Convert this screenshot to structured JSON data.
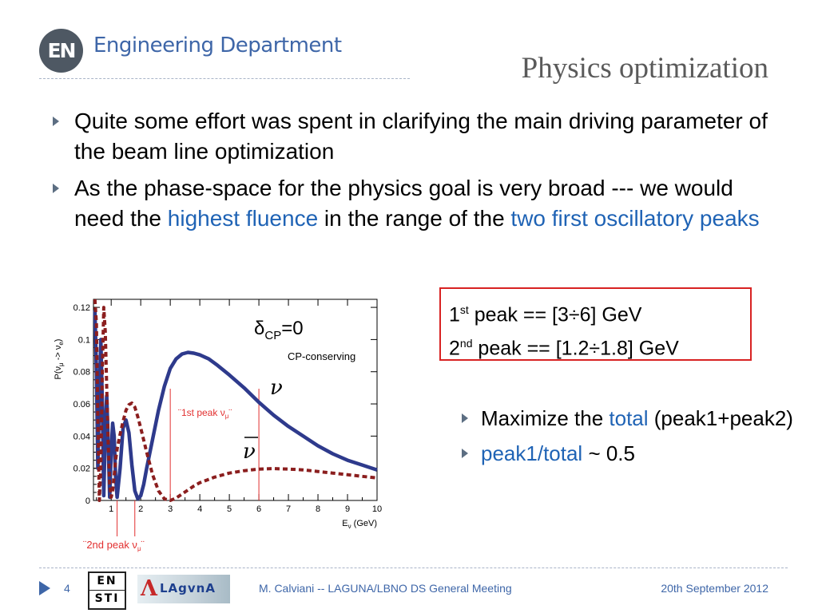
{
  "header": {
    "logo_text": "EN",
    "department": "Engineering Department",
    "title": "Physics optimization"
  },
  "bullets": [
    {
      "parts": [
        {
          "text": "Quite some effort was spent in clarifying the main driving parameter of the beam line optimization",
          "highlight": false
        }
      ]
    },
    {
      "parts": [
        {
          "text": "As the phase-space for the physics goal is very broad --- we would need the ",
          "highlight": false
        },
        {
          "text": "highest fluence",
          "highlight": true
        },
        {
          "text": " in the range of the ",
          "highlight": false
        },
        {
          "text": "two first oscillatory peaks",
          "highlight": true
        }
      ]
    }
  ],
  "peak_box": {
    "line1": {
      "num": "1",
      "sup": "st",
      "text": " peak == [3÷6] GeV"
    },
    "line2": {
      "num": "2",
      "sup": "nd",
      "text": " peak == [1.2÷1.8] GeV"
    }
  },
  "bullets2": [
    {
      "parts": [
        {
          "text": "Maximize the ",
          "highlight": false
        },
        {
          "text": "total",
          "highlight": true
        },
        {
          "text": " (peak1+peak2)",
          "highlight": false
        }
      ]
    },
    {
      "parts": [
        {
          "text": "peak1/total",
          "highlight": true
        },
        {
          "text": " ~ 0.5",
          "highlight": false
        }
      ]
    }
  ],
  "colors": {
    "accent": "#1f63b5",
    "nu_curve": "#2e3a8c",
    "nubar_curve": "#8b1e1e",
    "marker": "#e23030",
    "box_border": "#d82222"
  },
  "chart_data": {
    "type": "line",
    "title": "",
    "ylabel_parts": {
      "base": "P(ν",
      "sub1": "μ",
      "mid": " -> ν",
      "sub2": "e",
      "end": ")"
    },
    "xlabel_parts": {
      "base": "E",
      "sub": "ν",
      "end": " (GeV)"
    },
    "xlim": [
      0.4,
      10
    ],
    "ylim": [
      0,
      0.125
    ],
    "x_ticks": [
      1,
      2,
      3,
      4,
      5,
      6,
      7,
      8,
      9,
      10
    ],
    "x_tick_labels": [
      "1",
      "2",
      "3",
      "4",
      "5",
      "6",
      "7",
      "8",
      "9",
      "10"
    ],
    "y_ticks": [
      0,
      0.02,
      0.04,
      0.06,
      0.08,
      0.1,
      0.12
    ],
    "y_tick_labels": [
      "0",
      "0.02",
      "0.04",
      "0.06",
      "0.08",
      "0.1",
      "0.12"
    ],
    "annotations": {
      "delta_cp": {
        "base": "δ",
        "sub": "CP",
        "end": "=0"
      },
      "cp_conserving": "CP-conserving",
      "nu_symbol": "ν",
      "nubar_symbol": "ν",
      "peak1_label": {
        "base": "¨1st peak ν",
        "sub": "μ",
        "end": "¨"
      },
      "peak2_label": {
        "base": "¨2nd peak ν",
        "sub": "μ",
        "end": "¨"
      }
    },
    "markers": {
      "peak1": [
        3,
        6
      ],
      "peak2": [
        1.2,
        1.8
      ]
    },
    "series": [
      {
        "style": "solid",
        "x": [
          0.45,
          0.5,
          0.55,
          0.6,
          0.65,
          0.7,
          0.75,
          0.8,
          0.85,
          0.9,
          0.95,
          1.0,
          1.05,
          1.1,
          1.15,
          1.2,
          1.3,
          1.4,
          1.5,
          1.6,
          1.7,
          1.8,
          1.9,
          2.0,
          2.1,
          2.2,
          2.4,
          2.6,
          2.8,
          3.0,
          3.2,
          3.4,
          3.6,
          3.8,
          4.0,
          4.3,
          4.6,
          5.0,
          5.5,
          6.0,
          6.5,
          7.0,
          7.5,
          8.0,
          8.5,
          9.0,
          9.5,
          10.0
        ],
        "y": [
          0.118,
          0.08,
          0.02,
          0.065,
          0.1,
          0.06,
          0.003,
          0.045,
          0.065,
          0.035,
          0.002,
          0.03,
          0.048,
          0.04,
          0.015,
          0.002,
          0.02,
          0.045,
          0.05,
          0.042,
          0.022,
          0.006,
          0.001,
          0.003,
          0.01,
          0.02,
          0.038,
          0.056,
          0.071,
          0.082,
          0.088,
          0.091,
          0.092,
          0.0915,
          0.0905,
          0.088,
          0.084,
          0.078,
          0.07,
          0.061,
          0.053,
          0.046,
          0.04,
          0.034,
          0.029,
          0.025,
          0.022,
          0.019
        ]
      },
      {
        "style": "dashed",
        "x": [
          0.45,
          0.5,
          0.55,
          0.6,
          0.65,
          0.7,
          0.75,
          0.8,
          0.85,
          0.9,
          0.95,
          1.0,
          1.05,
          1.1,
          1.15,
          1.2,
          1.3,
          1.4,
          1.5,
          1.6,
          1.7,
          1.8,
          1.9,
          2.0,
          2.2,
          2.4,
          2.6,
          2.8,
          3.0,
          3.2,
          3.4,
          3.6,
          3.8,
          4.0,
          4.5,
          5.0,
          5.5,
          6.0,
          6.5,
          7.0,
          7.5,
          8.0,
          8.5,
          9.0,
          9.5,
          10.0
        ],
        "y": [
          0.125,
          0.11,
          0.05,
          0.0,
          0.02,
          0.08,
          0.12,
          0.105,
          0.07,
          0.035,
          0.01,
          0.002,
          0.006,
          0.015,
          0.025,
          0.032,
          0.041,
          0.049,
          0.056,
          0.0595,
          0.0605,
          0.058,
          0.052,
          0.045,
          0.03,
          0.016,
          0.006,
          0.001,
          0.0,
          0.0015,
          0.004,
          0.0065,
          0.009,
          0.011,
          0.0145,
          0.017,
          0.0185,
          0.0195,
          0.0198,
          0.0195,
          0.019,
          0.018,
          0.017,
          0.016,
          0.015,
          0.014
        ]
      }
    ]
  },
  "footer": {
    "page_number": "4",
    "logo_en": "EN",
    "logo_sti": "STI",
    "laguna_text": "LAgvnA",
    "center": "M. Calviani -- LAGUNA/LBNO DS General Meeting",
    "date": "20th September 2012"
  }
}
